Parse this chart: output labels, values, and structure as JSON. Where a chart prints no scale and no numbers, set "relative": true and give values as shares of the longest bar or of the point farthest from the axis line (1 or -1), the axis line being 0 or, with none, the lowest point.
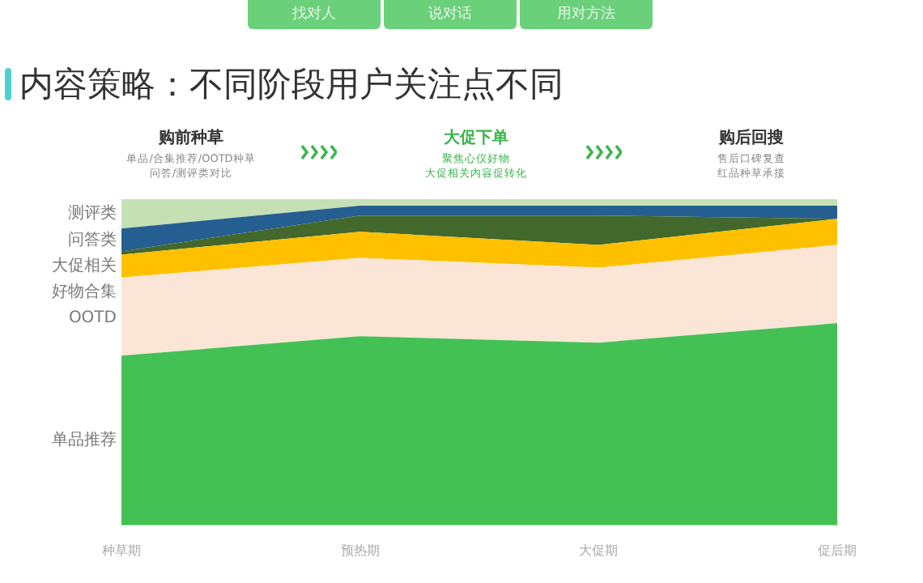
{
  "chart_data": {
    "type": "area",
    "title": "内容策略：不同阶段用户关注点不同",
    "annotations": [
      "找对人",
      "说对话",
      "用对方法",
      "购前种草",
      "单品/合集推荐/OOTD种草",
      "问答/测评类对比",
      "大促下单",
      "聚焦心仪好物",
      "大促相关内容促转化",
      "购后回搜",
      "售后口碑复查",
      "红品种草承接"
    ],
    "categories": [
      "种草期",
      "预热期",
      "大促期",
      "促后期"
    ],
    "stacked": true,
    "relative": true,
    "series": [
      {
        "name": "单品推荐",
        "color": "#44c155",
        "values": [
          0.52,
          0.58,
          0.56,
          0.62
        ]
      },
      {
        "name": "OOTD",
        "color": "#fbe5d6",
        "values": [
          0.24,
          0.24,
          0.23,
          0.24
        ]
      },
      {
        "name": "好物合集",
        "color": "#ffc000",
        "values": [
          0.07,
          0.08,
          0.07,
          0.08
        ]
      },
      {
        "name": "大促相关",
        "color": "#43682b",
        "values": [
          0.01,
          0.05,
          0.09,
          0
        ]
      },
      {
        "name": "问答类",
        "color": "#255e91",
        "values": [
          0.07,
          0.03,
          0.03,
          0.04
        ]
      },
      {
        "name": "测评类",
        "color": "#c5e0b4",
        "values": [
          0.09,
          0.02,
          0.02,
          0.02
        ]
      }
    ]
  }
}
